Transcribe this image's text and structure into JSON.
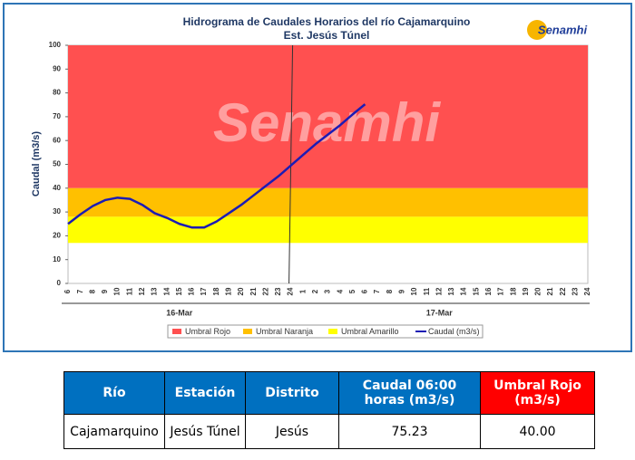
{
  "chart_data": {
    "type": "line",
    "title": "Hidrograma de Caudales Horarios del río Cajamarquino",
    "subtitle": "Est. Jesús Túnel",
    "y_label": "Caudal  (m3/s)",
    "watermark": "Senamhi",
    "logo": "Senamhi",
    "categories": [
      "6",
      "7",
      "8",
      "9",
      "10",
      "11",
      "12",
      "13",
      "14",
      "15",
      "16",
      "17",
      "18",
      "19",
      "20",
      "21",
      "22",
      "23",
      "24",
      "1",
      "2",
      "3",
      "4",
      "5",
      "6",
      "7",
      "8",
      "9",
      "10",
      "11",
      "12",
      "13",
      "14",
      "15",
      "16",
      "17",
      "18",
      "19",
      "20",
      "21",
      "22",
      "23",
      "24"
    ],
    "dates": [
      "16-Mar",
      "17-Mar"
    ],
    "bands": [
      {
        "name": "Umbral Rojo",
        "color": "#ff5050",
        "from": 40,
        "to": 100
      },
      {
        "name": "Umbral Naranja",
        "color": "#ffc000",
        "from": 28,
        "to": 40
      },
      {
        "name": "Umbral Amarillo",
        "color": "#ffff00",
        "from": 17,
        "to": 28
      }
    ],
    "series": [
      {
        "name": "Caudal (m3/s)",
        "color": "#1c1cb4",
        "values": [
          25,
          29,
          32.5,
          35,
          36,
          35.5,
          33,
          29.5,
          27.5,
          25,
          23.5,
          23.5,
          26,
          29.5,
          33,
          37,
          41,
          45,
          49.5,
          54,
          58.5,
          62.5,
          66.5,
          71,
          75.23,
          null,
          null,
          null,
          null,
          null,
          null,
          null,
          null,
          null,
          null,
          null,
          null,
          null,
          null,
          null,
          null,
          null,
          null
        ]
      }
    ],
    "ylim": [
      0,
      100
    ],
    "yticks": [
      0,
      10,
      20,
      30,
      40,
      50,
      60,
      70,
      80,
      90,
      100
    ],
    "grid": false
  },
  "table": {
    "headers": [
      "Río",
      "Estación",
      "Distrito",
      "Caudal 06:00 horas (m3/s)",
      "Umbral Rojo (m3/s)"
    ],
    "rows": [
      [
        "Cajamarquino",
        "Jesús Túnel",
        "Jesús",
        "75.23",
        "40.00"
      ]
    ]
  }
}
